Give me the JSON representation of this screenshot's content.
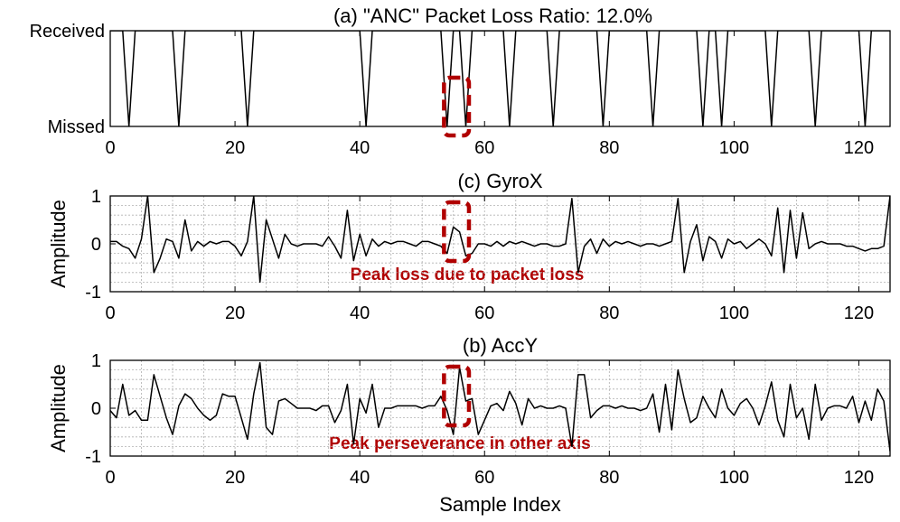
{
  "chart_data": [
    {
      "type": "line",
      "title": "(a) \"ANC\" Packet Loss Ratio: 12.0%",
      "xlim": [
        0,
        125
      ],
      "xticks": [
        0,
        20,
        40,
        60,
        80,
        100,
        120
      ],
      "ytick_labels": [
        "Missed",
        "Received"
      ],
      "ylim": [
        0,
        1
      ],
      "ylabel": "",
      "xlabel": "",
      "grid": false,
      "missed_indices": [
        3,
        11,
        22,
        41,
        54,
        57,
        64,
        71,
        79,
        87,
        95,
        98,
        106,
        113,
        121
      ],
      "highlight_x": [
        53.5,
        57.5
      ]
    },
    {
      "type": "line",
      "title": "(c) GyroX",
      "xlim": [
        0,
        125
      ],
      "ylim": [
        -1,
        1
      ],
      "xticks": [
        0,
        20,
        40,
        60,
        80,
        100,
        120
      ],
      "yticks": [
        -1,
        0,
        1
      ],
      "ylabel": "Amplitude",
      "xlabel": "",
      "grid": true,
      "annotation": "Peak loss due to packet loss",
      "highlight_x": [
        53.5,
        57.5
      ],
      "x": [
        0,
        1,
        2,
        3,
        4,
        5,
        6,
        7,
        8,
        9,
        10,
        11,
        12,
        13,
        14,
        15,
        16,
        17,
        18,
        19,
        20,
        21,
        22,
        23,
        24,
        25,
        26,
        27,
        28,
        29,
        30,
        31,
        32,
        33,
        34,
        35,
        36,
        37,
        38,
        39,
        40,
        41,
        42,
        43,
        44,
        45,
        46,
        47,
        48,
        49,
        50,
        51,
        52,
        53,
        54,
        55,
        56,
        57,
        58,
        59,
        60,
        61,
        62,
        63,
        64,
        65,
        66,
        67,
        68,
        69,
        70,
        71,
        72,
        73,
        74,
        75,
        76,
        77,
        78,
        79,
        80,
        81,
        82,
        83,
        84,
        85,
        86,
        87,
        88,
        89,
        90,
        91,
        92,
        93,
        94,
        95,
        96,
        97,
        98,
        99,
        100,
        101,
        102,
        103,
        104,
        105,
        106,
        107,
        108,
        109,
        110,
        111,
        112,
        113,
        114,
        115,
        116,
        117,
        118,
        119,
        120,
        121,
        122,
        123,
        124,
        125
      ],
      "values": [
        0.05,
        0.05,
        -0.05,
        -0.1,
        -0.3,
        0.1,
        1.0,
        -0.6,
        -0.3,
        0.1,
        0.05,
        -0.3,
        0.5,
        -0.15,
        0.05,
        -0.05,
        0.05,
        0.0,
        0.05,
        0.05,
        -0.05,
        -0.25,
        0.05,
        1.0,
        -0.8,
        0.5,
        0.1,
        -0.3,
        0.2,
        0.0,
        -0.05,
        0.0,
        0.0,
        0.0,
        -0.05,
        0.15,
        -0.05,
        -0.3,
        0.7,
        -0.35,
        0.2,
        -0.25,
        0.1,
        -0.05,
        0.05,
        0.0,
        0.05,
        0.05,
        0.0,
        -0.05,
        0.05,
        0.05,
        0.0,
        -0.05,
        -0.2,
        0.35,
        0.25,
        -0.25,
        -0.2,
        0.0,
        0.0,
        -0.05,
        0.05,
        -0.05,
        0.05,
        0.0,
        0.05,
        0.0,
        -0.05,
        0.0,
        0.0,
        -0.05,
        -0.05,
        0.0,
        0.95,
        -0.6,
        -0.05,
        0.1,
        -0.2,
        0.1,
        -0.05,
        0.05,
        0.0,
        0.05,
        0.0,
        -0.05,
        0.0,
        0.0,
        -0.05,
        0.0,
        0.05,
        0.95,
        -0.6,
        0.05,
        0.4,
        -0.35,
        0.15,
        0.05,
        -0.3,
        0.1,
        0.0,
        0.05,
        -0.1,
        0.0,
        0.1,
        0.0,
        -0.25,
        0.75,
        -0.6,
        0.7,
        -0.3,
        0.65,
        -0.1,
        0.0,
        0.05,
        0.0,
        0.0,
        0.0,
        -0.05,
        -0.05,
        -0.1,
        -0.15,
        -0.1,
        -0.1,
        -0.05,
        1.0
      ]
    },
    {
      "type": "line",
      "title": "(b) AccY",
      "xlim": [
        0,
        125
      ],
      "ylim": [
        -1,
        1
      ],
      "xticks": [
        0,
        20,
        40,
        60,
        80,
        100,
        120
      ],
      "yticks": [
        -1,
        0,
        1
      ],
      "ylabel": "Amplitude",
      "xlabel": "Sample Index",
      "grid": true,
      "annotation": "Peak perseverance in other axis",
      "highlight_x": [
        53.5,
        57.5
      ],
      "x": [
        0,
        1,
        2,
        3,
        4,
        5,
        6,
        7,
        8,
        9,
        10,
        11,
        12,
        13,
        14,
        15,
        16,
        17,
        18,
        19,
        20,
        21,
        22,
        23,
        24,
        25,
        26,
        27,
        28,
        29,
        30,
        31,
        32,
        33,
        34,
        35,
        36,
        37,
        38,
        39,
        40,
        41,
        42,
        43,
        44,
        45,
        46,
        47,
        48,
        49,
        50,
        51,
        52,
        53,
        54,
        55,
        56,
        57,
        58,
        59,
        60,
        61,
        62,
        63,
        64,
        65,
        66,
        67,
        68,
        69,
        70,
        71,
        72,
        73,
        74,
        75,
        76,
        77,
        78,
        79,
        80,
        81,
        82,
        83,
        84,
        85,
        86,
        87,
        88,
        89,
        90,
        91,
        92,
        93,
        94,
        95,
        96,
        97,
        98,
        99,
        100,
        101,
        102,
        103,
        104,
        105,
        106,
        107,
        108,
        109,
        110,
        111,
        112,
        113,
        114,
        115,
        116,
        117,
        118,
        119,
        120,
        121,
        122,
        123,
        124,
        125
      ],
      "values": [
        -0.05,
        -0.2,
        0.5,
        -0.15,
        -0.05,
        -0.25,
        -0.25,
        0.7,
        0.25,
        -0.2,
        -0.55,
        0.05,
        0.3,
        0.2,
        0.0,
        -0.15,
        -0.25,
        -0.15,
        0.3,
        0.25,
        0.25,
        -0.2,
        -0.65,
        0.3,
        0.95,
        -0.4,
        -0.55,
        0.15,
        0.2,
        0.1,
        0.0,
        0.0,
        0.0,
        -0.05,
        0.05,
        0.05,
        -0.3,
        -0.05,
        0.5,
        -0.75,
        0.2,
        -0.1,
        0.5,
        -0.4,
        0.0,
        0.0,
        0.05,
        0.05,
        0.05,
        0.05,
        0.0,
        0.05,
        0.05,
        0.25,
        -0.05,
        -0.55,
        0.85,
        0.15,
        0.2,
        -0.55,
        -0.25,
        0.05,
        0.1,
        -0.05,
        0.35,
        0.1,
        -0.35,
        0.2,
        0.0,
        0.05,
        0.0,
        0.0,
        0.05,
        0.0,
        -0.8,
        0.7,
        0.7,
        -0.2,
        -0.05,
        0.05,
        0.05,
        0.0,
        0.05,
        0.0,
        0.0,
        -0.05,
        0.0,
        0.3,
        -0.5,
        0.5,
        -0.45,
        0.8,
        0.2,
        -0.3,
        -0.2,
        0.25,
        0.0,
        -0.2,
        0.4,
        0.0,
        -0.15,
        0.1,
        0.2,
        0.0,
        -0.35,
        0.05,
        0.55,
        -0.25,
        -0.6,
        0.5,
        -0.2,
        0.0,
        -0.65,
        0.5,
        -0.25,
        0.0,
        0.05,
        0.05,
        0.0,
        0.25,
        -0.3,
        0.15,
        -0.25,
        0.4,
        0.15,
        -0.9
      ]
    }
  ]
}
